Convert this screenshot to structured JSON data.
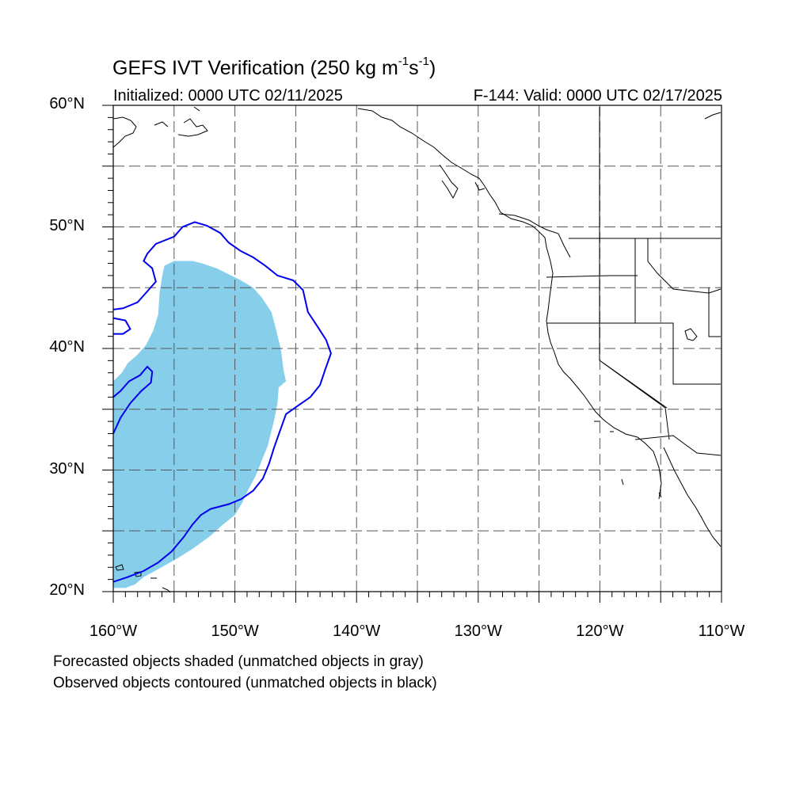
{
  "title": {
    "main": "GEFS IVT Verification (250 kg m",
    "exp1": "-1",
    "unit_s": "s",
    "exp2": "-1",
    "close": ")"
  },
  "initialized": "Initialized: 0000 UTC 02/11/2025",
  "valid": "F-144: Valid: 0000 UTC 02/17/2025",
  "map_extent": {
    "lon_min": -160,
    "lon_max": -110,
    "lat_min": 20,
    "lat_max": 60
  },
  "lat_ticks": [
    {
      "value": 60,
      "label": "60°N"
    },
    {
      "value": 50,
      "label": "50°N"
    },
    {
      "value": 40,
      "label": "40°N"
    },
    {
      "value": 30,
      "label": "30°N"
    },
    {
      "value": 20,
      "label": "20°N"
    }
  ],
  "lon_ticks": [
    {
      "value": -160,
      "label": "160°W"
    },
    {
      "value": -150,
      "label": "150°W"
    },
    {
      "value": -140,
      "label": "140°W"
    },
    {
      "value": -130,
      "label": "130°W"
    },
    {
      "value": -120,
      "label": "120°W"
    },
    {
      "value": -110,
      "label": "110°W"
    }
  ],
  "grid_spacing_deg": 5,
  "colors": {
    "forecast_shade": "#87ceeb",
    "observed_contour": "#0000ee",
    "coastline": "#000000",
    "grid": "#555555"
  },
  "legend_notes": [
    "Forecasted objects shaded (unmatched objects in gray)",
    "Observed objects contoured (unmatched objects in black)"
  ],
  "forecast_object_shaded": [
    [
      -160,
      37.3
    ],
    [
      -159.3,
      38
    ],
    [
      -158.8,
      38.8
    ],
    [
      -158,
      39.5
    ],
    [
      -157.3,
      40.3
    ],
    [
      -156.7,
      41.5
    ],
    [
      -156.3,
      42.8
    ],
    [
      -156.2,
      44.5
    ],
    [
      -156.0,
      45.8
    ],
    [
      -155.8,
      46.8
    ],
    [
      -155.0,
      47.2
    ],
    [
      -153.5,
      47.2
    ],
    [
      -152.7,
      47.0
    ],
    [
      -151.5,
      46.6
    ],
    [
      -150.5,
      46.1
    ],
    [
      -149.5,
      45.6
    ],
    [
      -148.5,
      45.0
    ],
    [
      -147.8,
      44.2
    ],
    [
      -147.0,
      43.0
    ],
    [
      -146.6,
      41.5
    ],
    [
      -146.2,
      39.8
    ],
    [
      -146.0,
      38.2
    ],
    [
      -145.8,
      37.3
    ],
    [
      -146.4,
      36.8
    ],
    [
      -146.5,
      35.5
    ],
    [
      -146.8,
      34.0
    ],
    [
      -147.3,
      32.0
    ],
    [
      -147.7,
      31.0
    ],
    [
      -148.3,
      29.5
    ],
    [
      -148.9,
      28.4
    ],
    [
      -149.4,
      27.3
    ],
    [
      -150.0,
      26.3
    ],
    [
      -151.0,
      25.5
    ],
    [
      -152.0,
      24.6
    ],
    [
      -153.5,
      23.5
    ],
    [
      -154.8,
      22.7
    ],
    [
      -156.2,
      21.9
    ],
    [
      -157.5,
      21.2
    ],
    [
      -158.2,
      20.6
    ],
    [
      -159.0,
      20.3
    ],
    [
      -160,
      20.3
    ]
  ],
  "observed_object_contour": [
    [
      -160,
      20.8
    ],
    [
      -158.8,
      21.2
    ],
    [
      -157.5,
      21.7
    ],
    [
      -156.3,
      22.4
    ],
    [
      -155.2,
      23.3
    ],
    [
      -154.2,
      24.5
    ],
    [
      -153.5,
      25.5
    ],
    [
      -152.8,
      26.3
    ],
    [
      -152.0,
      26.8
    ],
    [
      -150.5,
      27.2
    ],
    [
      -149.5,
      27.6
    ],
    [
      -148.5,
      28.3
    ],
    [
      -147.7,
      29.3
    ],
    [
      -147.2,
      30.5
    ],
    [
      -146.8,
      31.8
    ],
    [
      -146.3,
      33.2
    ],
    [
      -145.8,
      34.6
    ],
    [
      -144.8,
      35.3
    ],
    [
      -143.8,
      36.0
    ],
    [
      -143.0,
      37.0
    ],
    [
      -142.6,
      38.2
    ],
    [
      -142.1,
      39.6
    ],
    [
      -142.5,
      40.7
    ],
    [
      -143.2,
      41.8
    ],
    [
      -144.0,
      43.0
    ],
    [
      -144.4,
      44.8
    ],
    [
      -145.2,
      45.6
    ],
    [
      -146.5,
      46.0
    ],
    [
      -147.5,
      46.8
    ],
    [
      -148.5,
      47.5
    ],
    [
      -149.5,
      48.0
    ],
    [
      -150.5,
      48.7
    ],
    [
      -151.2,
      49.5
    ],
    [
      -152.3,
      50.1
    ],
    [
      -153.3,
      50.4
    ],
    [
      -154.3,
      50.0
    ],
    [
      -155.0,
      49.2
    ],
    [
      -156.5,
      48.6
    ],
    [
      -157.2,
      47.8
    ],
    [
      -157.5,
      47.2
    ],
    [
      -156.8,
      46.6
    ],
    [
      -156.5,
      45.5
    ],
    [
      -157.2,
      44.7
    ],
    [
      -158.0,
      43.8
    ],
    [
      -159.2,
      43.3
    ],
    [
      -160,
      43.2
    ]
  ],
  "observed_object_contour_2": [
    [
      -160,
      36.0
    ],
    [
      -159.4,
      36.5
    ],
    [
      -158.7,
      37.3
    ],
    [
      -157.8,
      37.8
    ],
    [
      -157.2,
      38.5
    ],
    [
      -156.8,
      38.1
    ],
    [
      -156.9,
      37.2
    ],
    [
      -157.7,
      36.5
    ],
    [
      -158.6,
      35.5
    ],
    [
      -159.4,
      34.3
    ],
    [
      -160,
      33.0
    ]
  ],
  "observed_object_contour_3": [
    [
      -160,
      42.5
    ],
    [
      -159.0,
      42.3
    ],
    [
      -158.6,
      41.6
    ],
    [
      -159.2,
      41.2
    ],
    [
      -160,
      41.2
    ]
  ]
}
